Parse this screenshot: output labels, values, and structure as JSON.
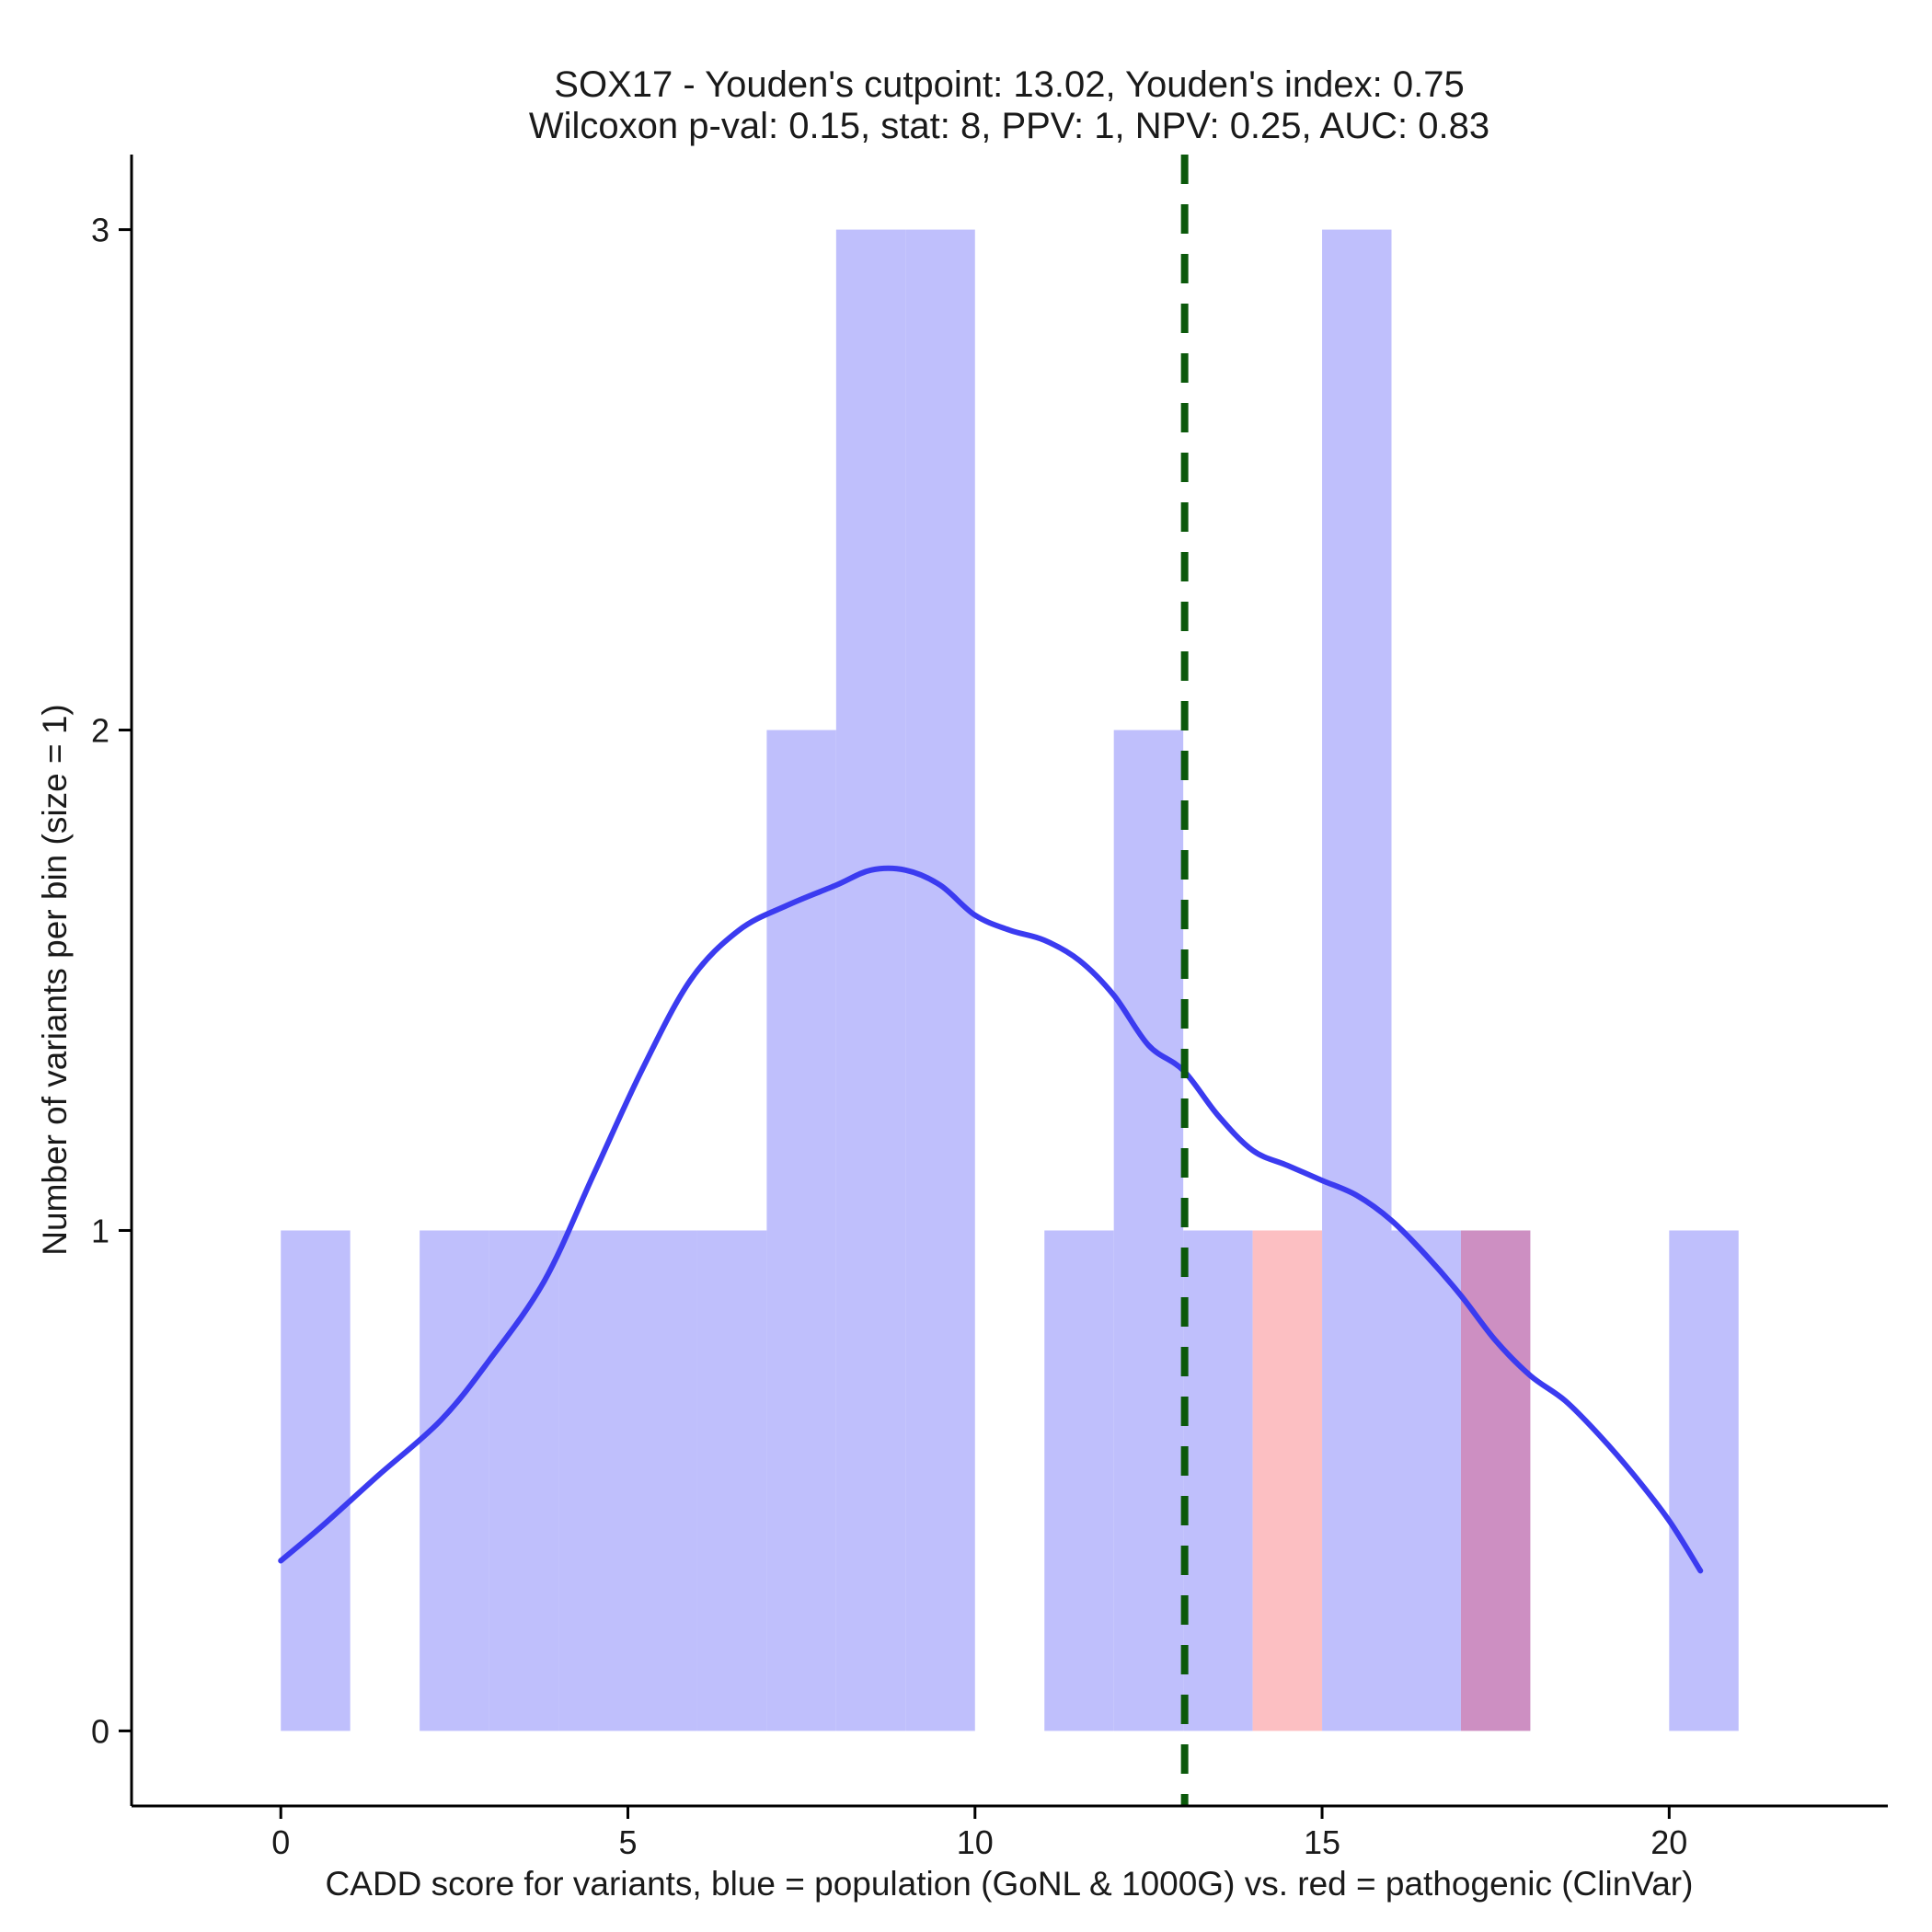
{
  "chart_data": {
    "type": "histogram",
    "title_line1": "SOX17 - Youden's cutpoint: 13.02, Youden's index: 0.75",
    "title_line2": "Wilcoxon p-val: 0.15, stat: 8, PPV: 1, NPV: 0.25, AUC: 0.83",
    "xlabel": "CADD score for variants, blue = population (GoNL & 1000G) vs. red = pathogenic (ClinVar)",
    "ylabel": "Number of variants per bin (size = 1)",
    "xlim": [
      -2.15,
      23.15
    ],
    "ylim": [
      -0.15,
      3.15
    ],
    "x_ticks": [
      {
        "value": 0,
        "label": "0"
      },
      {
        "value": 5,
        "label": "5"
      },
      {
        "value": 10,
        "label": "10"
      },
      {
        "value": 15,
        "label": "15"
      },
      {
        "value": 20,
        "label": "20"
      }
    ],
    "y_ticks": [
      {
        "value": 0,
        "label": "0"
      },
      {
        "value": 1,
        "label": "1"
      },
      {
        "value": 2,
        "label": "2"
      },
      {
        "value": 3,
        "label": "3"
      }
    ],
    "bin_width": 1,
    "series": [
      {
        "name": "population (GoNL & 1000G)",
        "color": "#bfbffc",
        "bins": [
          {
            "start": 0,
            "count": 1
          },
          {
            "start": 2,
            "count": 1
          },
          {
            "start": 3,
            "count": 1
          },
          {
            "start": 4,
            "count": 1
          },
          {
            "start": 5,
            "count": 1
          },
          {
            "start": 6,
            "count": 1
          },
          {
            "start": 7,
            "count": 2
          },
          {
            "start": 8,
            "count": 3
          },
          {
            "start": 9,
            "count": 3
          },
          {
            "start": 11,
            "count": 1
          },
          {
            "start": 12,
            "count": 2
          },
          {
            "start": 13,
            "count": 1
          },
          {
            "start": 15,
            "count": 3
          },
          {
            "start": 16,
            "count": 1
          },
          {
            "start": 17,
            "count": 1
          },
          {
            "start": 20,
            "count": 1
          }
        ]
      },
      {
        "name": "pathogenic (ClinVar)",
        "color": "#fcbfc2",
        "overlap_color": "#cd8fc2",
        "bins": [
          {
            "start": 14,
            "count": 1
          },
          {
            "start": 17,
            "count": 1
          }
        ]
      }
    ],
    "density_line": {
      "name": "population density",
      "color": "#3b3bf0",
      "x": [
        0,
        0.6,
        1.4,
        2.3,
        3.0,
        3.8,
        4.5,
        5.2,
        5.9,
        6.6,
        7.3,
        8.0,
        8.5,
        9.0,
        9.5,
        10.0,
        10.5,
        11.0,
        11.5,
        12.0,
        12.5,
        13.0,
        13.5,
        14.0,
        14.5,
        15.0,
        15.5,
        16.0,
        16.5,
        17.0,
        17.5,
        18.0,
        18.5,
        19.0,
        19.5,
        20.0,
        20.45
      ],
      "y": [
        0.34,
        0.41,
        0.51,
        0.62,
        0.74,
        0.9,
        1.11,
        1.32,
        1.5,
        1.6,
        1.65,
        1.69,
        1.72,
        1.72,
        1.69,
        1.63,
        1.6,
        1.58,
        1.54,
        1.47,
        1.37,
        1.32,
        1.23,
        1.16,
        1.13,
        1.1,
        1.07,
        1.02,
        0.95,
        0.87,
        0.78,
        0.71,
        0.66,
        0.59,
        0.51,
        0.42,
        0.32
      ]
    },
    "cutpoint": {
      "value": 13.02,
      "color": "#0b590b",
      "style": "dashed"
    }
  }
}
